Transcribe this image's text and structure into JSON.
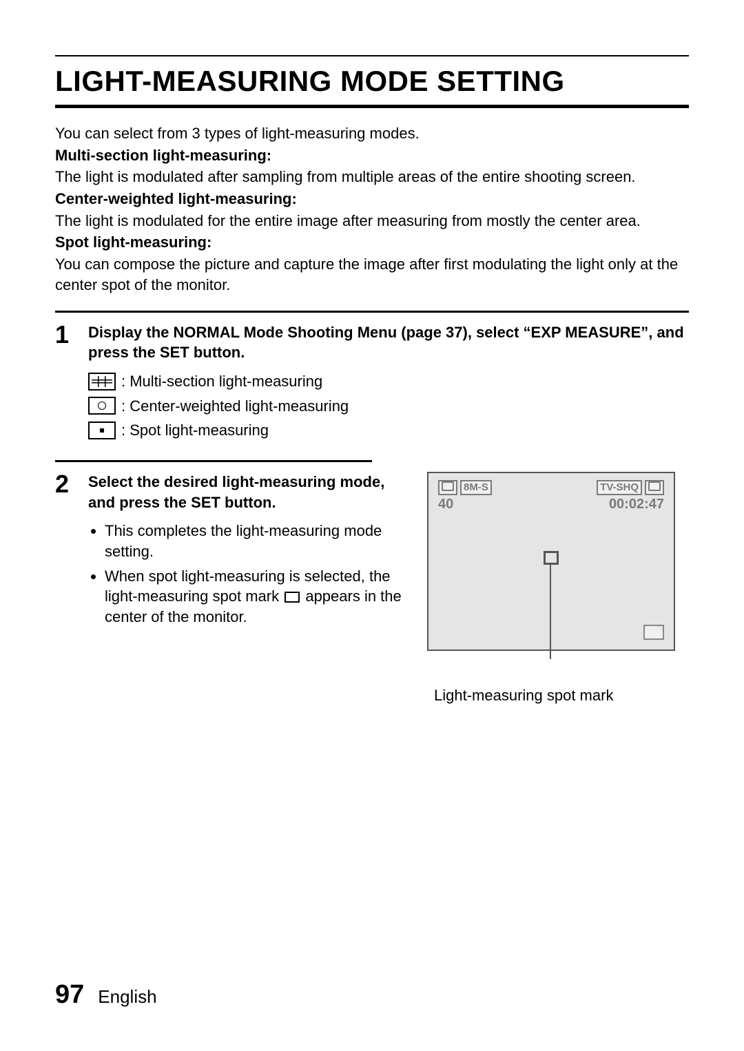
{
  "title": "LIGHT-MEASURING MODE SETTING",
  "intro": {
    "lead": "You can select from 3 types of light-measuring modes.",
    "modes": [
      {
        "label": "Multi-section light-measuring:",
        "desc": "The light is modulated after sampling from multiple areas of the entire shooting screen."
      },
      {
        "label": "Center-weighted light-measuring:",
        "desc": "The light is modulated for the entire image after measuring from mostly the center area."
      },
      {
        "label": "Spot light-measuring:",
        "desc": "You can compose the picture and capture the image after first modulating the light only at the center spot of the monitor."
      }
    ]
  },
  "step1": {
    "num": "1",
    "instruction": "Display the NORMAL Mode Shooting Menu (page 37), select “EXP MEASURE”, and press the SET button.",
    "options": [
      {
        "icon": "multi",
        "text": ": Multi-section light-measuring"
      },
      {
        "icon": "center",
        "text": ": Center-weighted light-measuring"
      },
      {
        "icon": "spot",
        "text": ": Spot light-measuring"
      }
    ]
  },
  "step2": {
    "num": "2",
    "instruction": "Select the desired light-measuring mode, and press the SET button.",
    "bullets": [
      "This completes the light-measuring mode setting.",
      "When spot light-measuring is selected, the light-measuring spot mark ▭ appears in the center of the monitor."
    ],
    "bullet2_pre": "When spot light-measuring is selected, the light-measuring spot mark ",
    "bullet2_post": " appears in the center of the monitor."
  },
  "lcd": {
    "topLeft1": " ",
    "topLeft2": "8M-S",
    "topRight1": "TV-SHQ",
    "topRight2": " ",
    "count": "40",
    "time": "00:02:47",
    "caption": "Light-measuring spot mark"
  },
  "footer": {
    "page": "97",
    "lang": "English"
  },
  "colors": {
    "text": "#000000",
    "lcd_bg": "#e5e5e5",
    "lcd_fg": "#7a7a7a"
  }
}
